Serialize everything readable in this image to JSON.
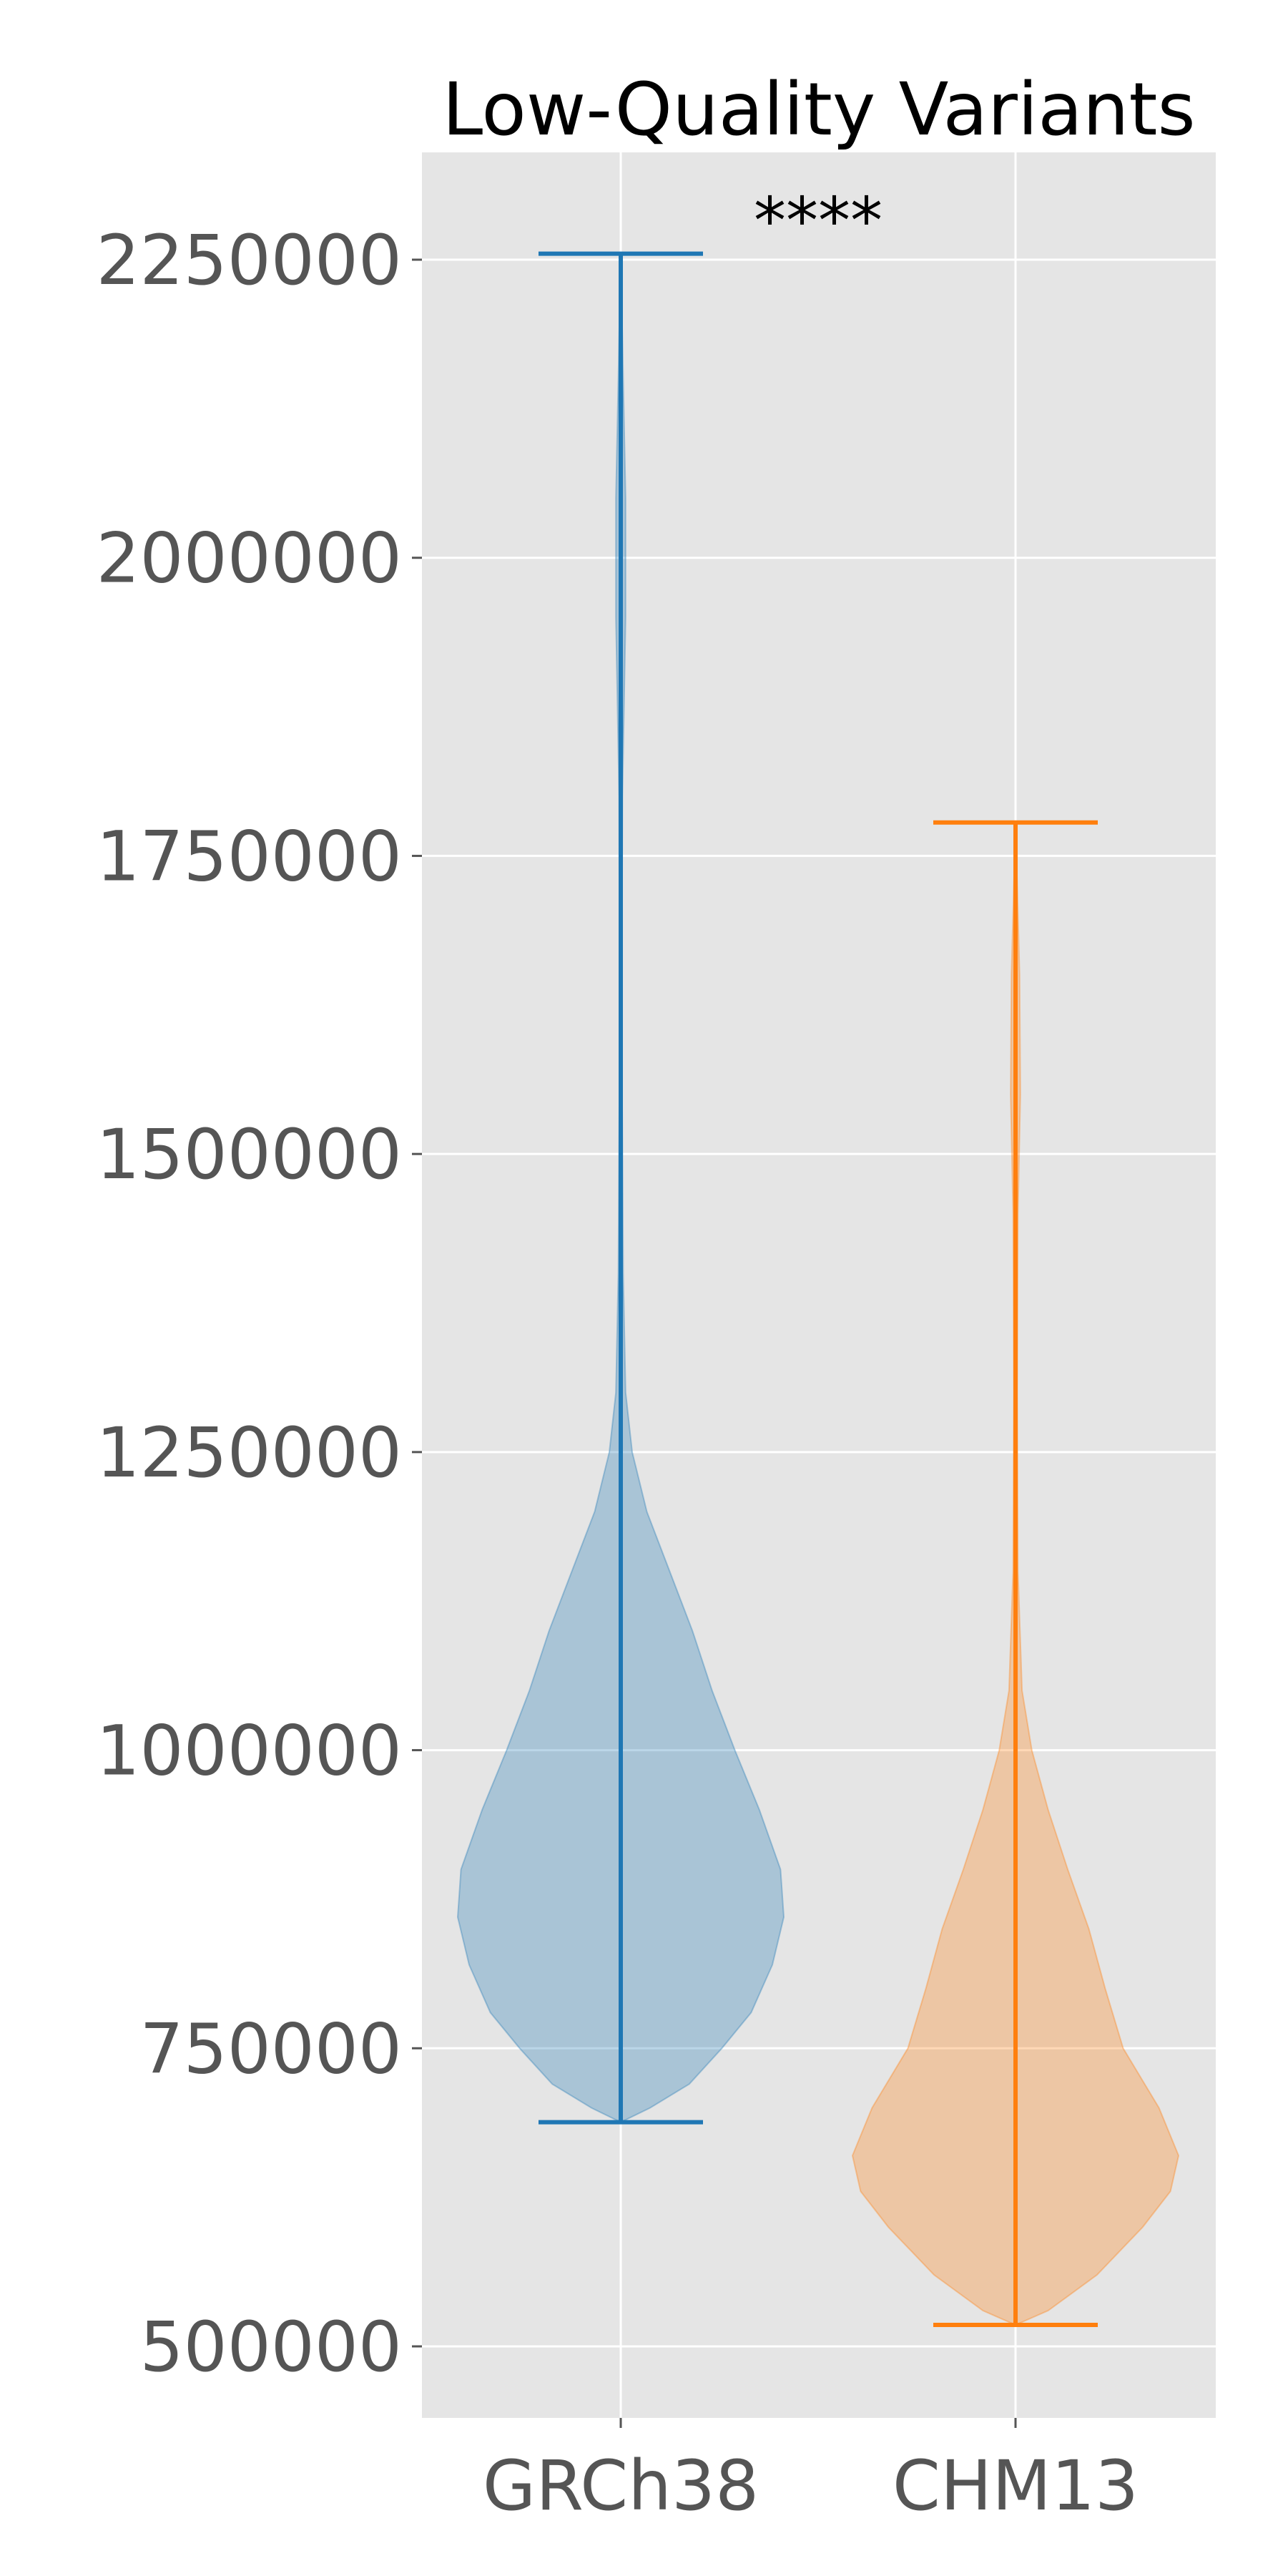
{
  "chart_data": {
    "type": "violin",
    "title": "Low-Quality Variants",
    "annotation": "****",
    "xlabel": "",
    "ylabel": "",
    "ylim": [
      440000,
      2340000
    ],
    "yticks": [
      500000,
      750000,
      1000000,
      1250000,
      1500000,
      1750000,
      2000000,
      2250000
    ],
    "ytick_labels": [
      "500000",
      "750000",
      "1000000",
      "1250000",
      "1500000",
      "1750000",
      "2000000",
      "2250000"
    ],
    "categories": [
      "GRCh38",
      "CHM13"
    ],
    "grid": true,
    "series": [
      {
        "min": 688000,
        "max": 2255000,
        "color": "#1f77b4",
        "density": [
          [
            688000,
            0.0
          ],
          [
            700000,
            0.18
          ],
          [
            720000,
            0.42
          ],
          [
            750000,
            0.62
          ],
          [
            780000,
            0.8
          ],
          [
            820000,
            0.93
          ],
          [
            860000,
            1.0
          ],
          [
            900000,
            0.98
          ],
          [
            950000,
            0.85
          ],
          [
            1000000,
            0.7
          ],
          [
            1050000,
            0.56
          ],
          [
            1100000,
            0.44
          ],
          [
            1150000,
            0.3
          ],
          [
            1200000,
            0.16
          ],
          [
            1250000,
            0.07
          ],
          [
            1300000,
            0.03
          ],
          [
            1400000,
            0.015
          ],
          [
            1600000,
            0.006
          ],
          [
            1800000,
            0.01
          ],
          [
            1950000,
            0.03
          ],
          [
            2050000,
            0.03
          ],
          [
            2150000,
            0.015
          ],
          [
            2255000,
            0.0
          ]
        ]
      },
      {
        "min": 518000,
        "max": 1778000,
        "color": "#ff7f0e",
        "density": [
          [
            518000,
            0.0
          ],
          [
            530000,
            0.2
          ],
          [
            560000,
            0.5
          ],
          [
            600000,
            0.78
          ],
          [
            630000,
            0.95
          ],
          [
            660000,
            1.0
          ],
          [
            700000,
            0.88
          ],
          [
            750000,
            0.66
          ],
          [
            800000,
            0.55
          ],
          [
            850000,
            0.45
          ],
          [
            900000,
            0.32
          ],
          [
            950000,
            0.2
          ],
          [
            1000000,
            0.1
          ],
          [
            1050000,
            0.04
          ],
          [
            1150000,
            0.015
          ],
          [
            1300000,
            0.01
          ],
          [
            1450000,
            0.015
          ],
          [
            1550000,
            0.03
          ],
          [
            1650000,
            0.025
          ],
          [
            1778000,
            0.0
          ]
        ]
      }
    ]
  }
}
